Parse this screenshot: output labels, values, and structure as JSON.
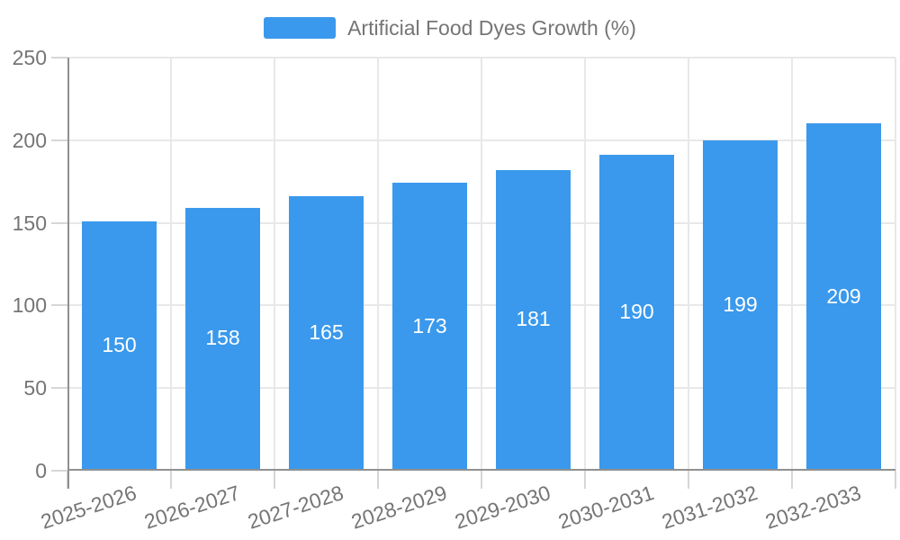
{
  "chart_data": {
    "type": "bar",
    "title": "Artificial Food Dyes Growth (%)",
    "legend": {
      "label": "Artificial Food Dyes Growth (%)",
      "position": "top-center"
    },
    "categories": [
      "2025-2026",
      "2026-2027",
      "2027-2028",
      "2028-2029",
      "2029-2030",
      "2030-2031",
      "2031-2032",
      "2032-2033"
    ],
    "values": [
      150,
      158,
      165,
      173,
      181,
      190,
      199,
      209
    ],
    "xlabel": "",
    "ylabel": "",
    "ylim": [
      0,
      250
    ],
    "yticks": [
      0,
      50,
      100,
      150,
      200,
      250
    ],
    "grid": true,
    "value_label_position": "inside-center",
    "x_tick_rotation_deg": -18
  },
  "colors": {
    "bar": "#3a99ec",
    "grid": "#e8e8e8",
    "tick": "#d6d6d6",
    "axis": "#909090",
    "label": "#757575",
    "value_label": "#ffffff",
    "background": "#ffffff"
  }
}
